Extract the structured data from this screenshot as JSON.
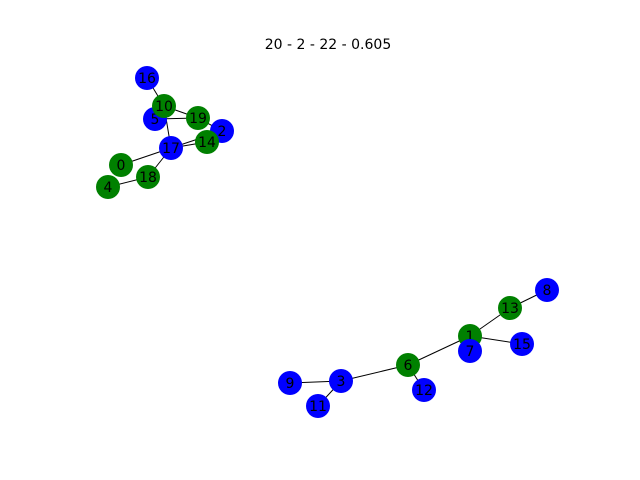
{
  "title": "20 - 2 - 22 - 0.605",
  "colors": {
    "green": "#008000",
    "blue": "#0000ff"
  },
  "nodes": [
    {
      "id": "0",
      "color": "green"
    },
    {
      "id": "1",
      "color": "green"
    },
    {
      "id": "2",
      "color": "blue"
    },
    {
      "id": "3",
      "color": "blue"
    },
    {
      "id": "4",
      "color": "green"
    },
    {
      "id": "5",
      "color": "blue"
    },
    {
      "id": "6",
      "color": "green"
    },
    {
      "id": "7",
      "color": "blue"
    },
    {
      "id": "8",
      "color": "blue"
    },
    {
      "id": "9",
      "color": "blue"
    },
    {
      "id": "10",
      "color": "green"
    },
    {
      "id": "11",
      "color": "blue"
    },
    {
      "id": "12",
      "color": "blue"
    },
    {
      "id": "13",
      "color": "green"
    },
    {
      "id": "14",
      "color": "green"
    },
    {
      "id": "15",
      "color": "blue"
    },
    {
      "id": "16",
      "color": "blue"
    },
    {
      "id": "17",
      "color": "blue"
    },
    {
      "id": "18",
      "color": "green"
    },
    {
      "id": "19",
      "color": "green"
    }
  ],
  "edges": [
    [
      "16",
      "10"
    ],
    [
      "10",
      "19"
    ],
    [
      "5",
      "19"
    ],
    [
      "10",
      "17"
    ],
    [
      "19",
      "2"
    ],
    [
      "17",
      "14"
    ],
    [
      "17",
      "2"
    ],
    [
      "0",
      "17"
    ],
    [
      "17",
      "18"
    ],
    [
      "18",
      "4"
    ],
    [
      "9",
      "3"
    ],
    [
      "3",
      "11"
    ],
    [
      "3",
      "6"
    ],
    [
      "6",
      "12"
    ],
    [
      "6",
      "1"
    ],
    [
      "1",
      "7"
    ],
    [
      "1",
      "13"
    ],
    [
      "1",
      "15"
    ],
    [
      "13",
      "8"
    ]
  ]
}
